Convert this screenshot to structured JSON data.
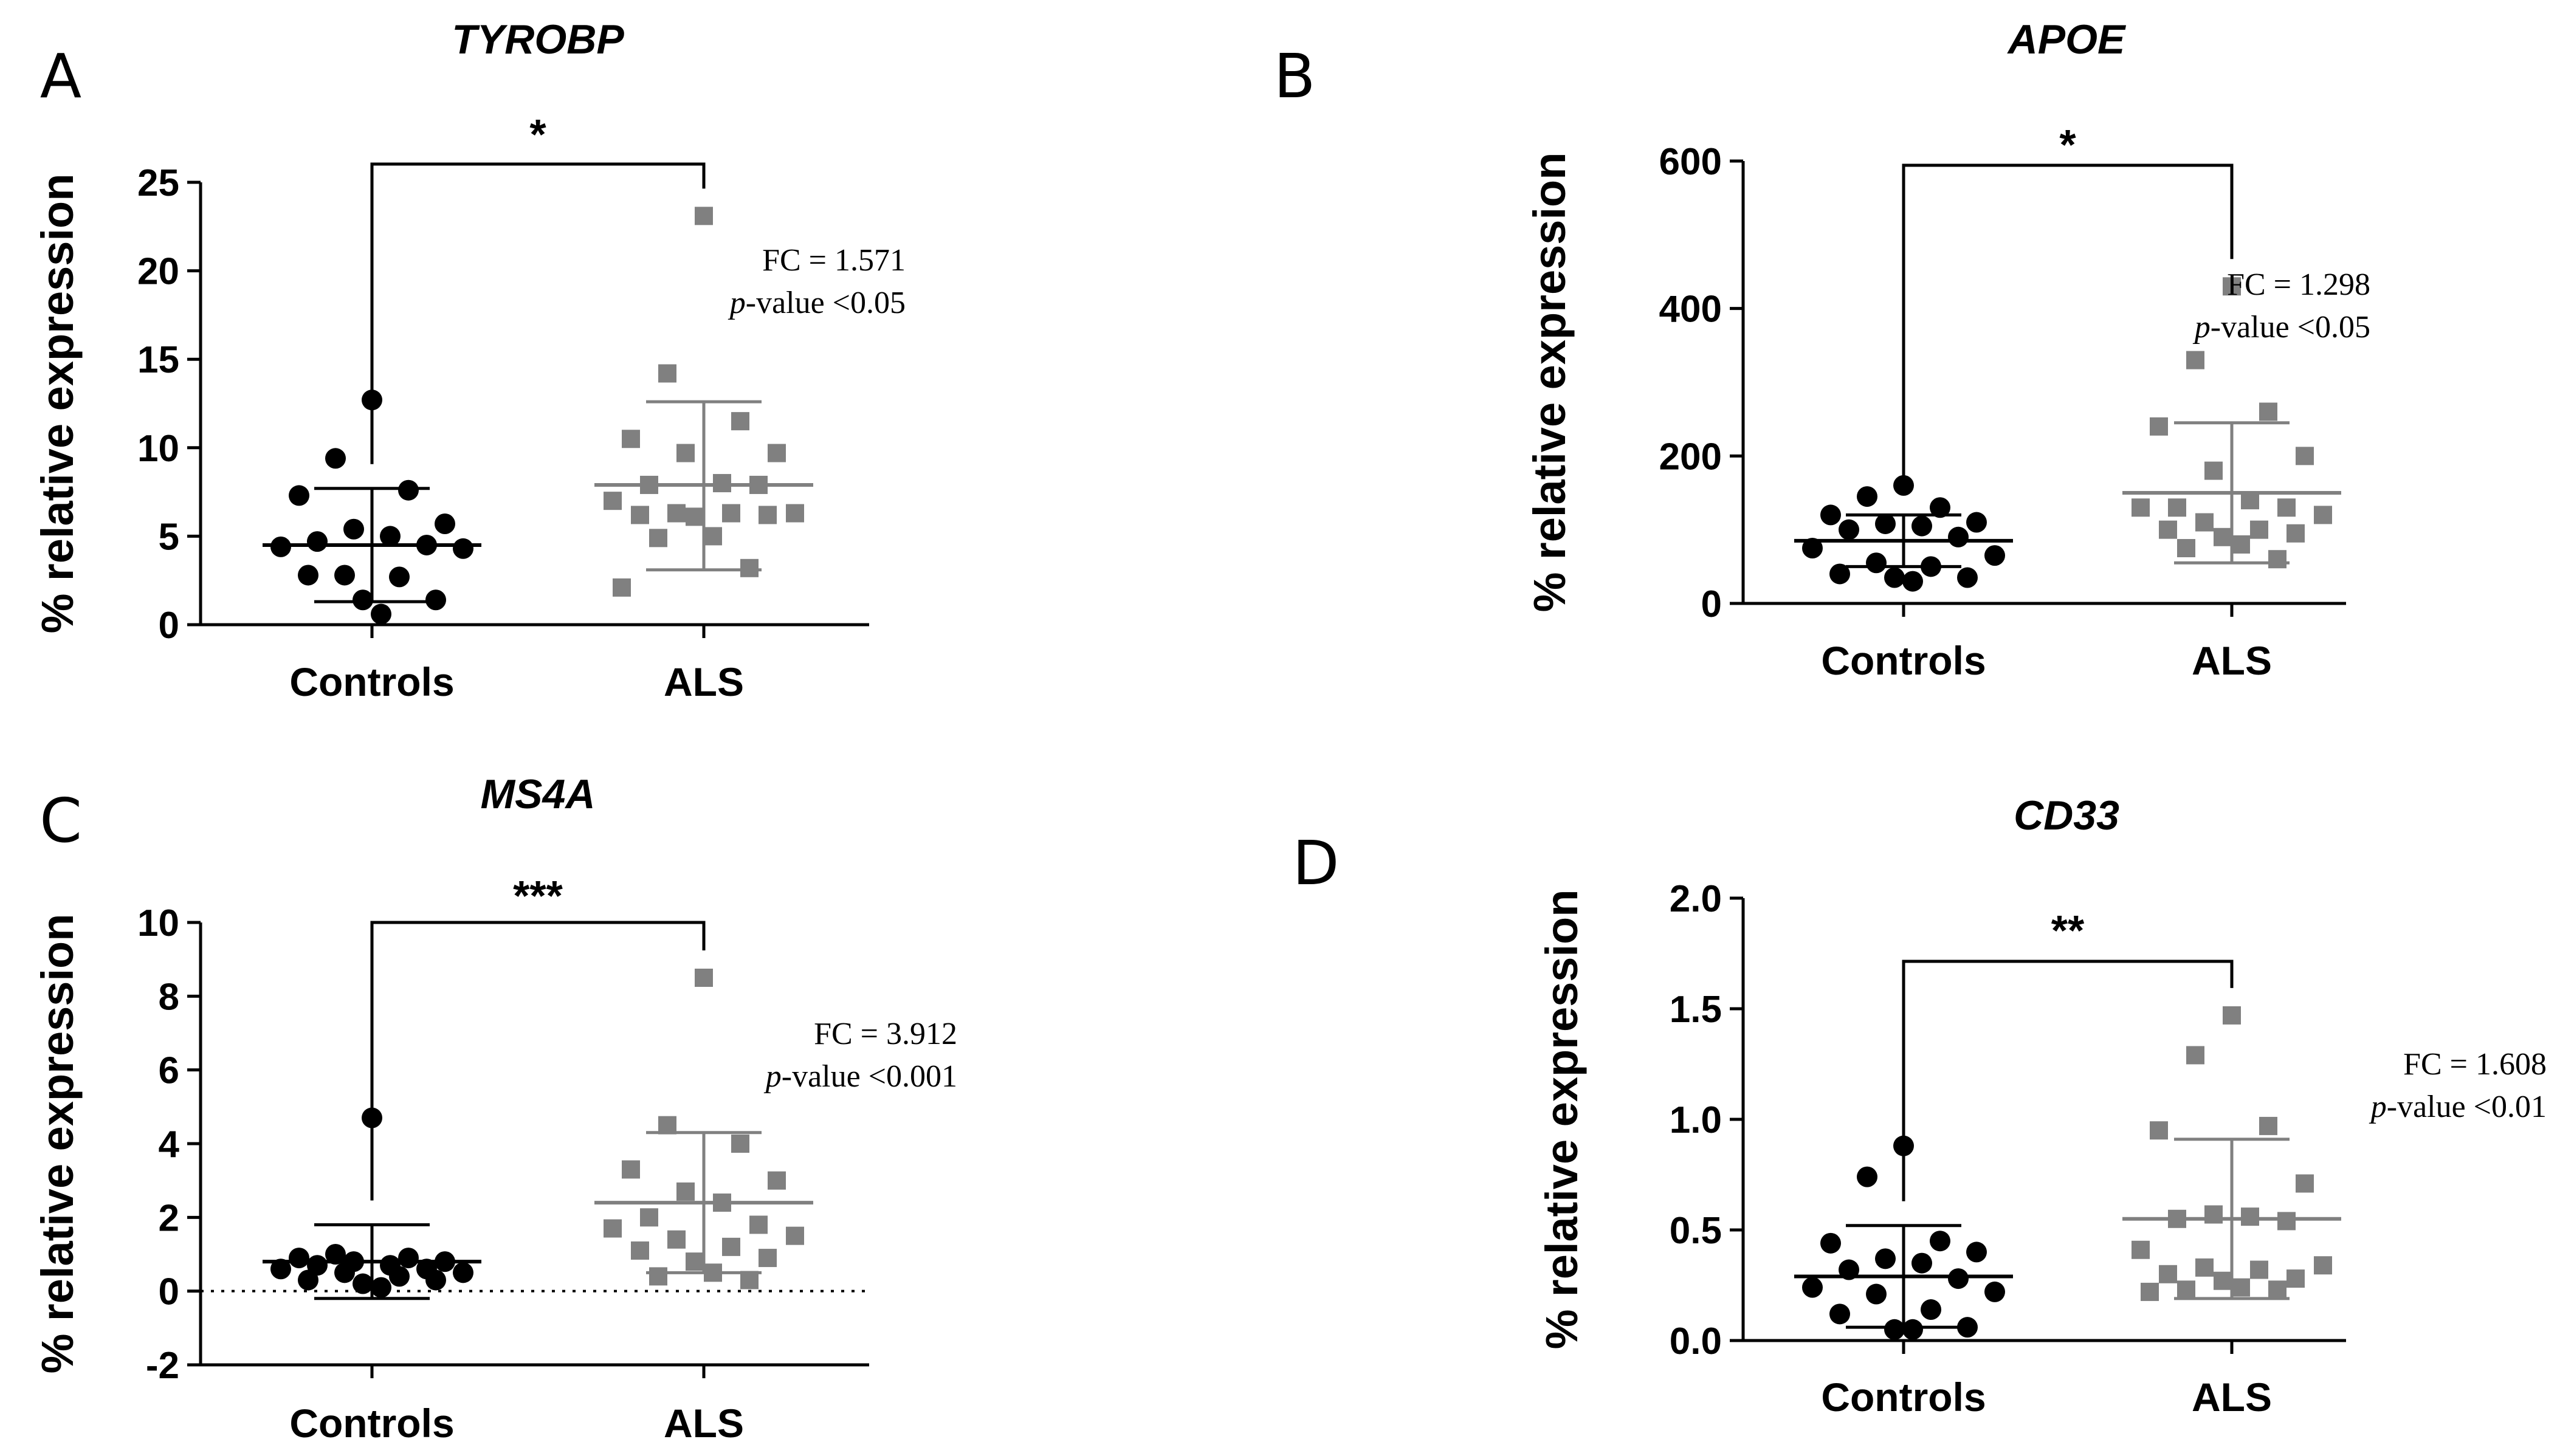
{
  "chart_data": [
    {
      "type": "scatter",
      "panel": "A",
      "title": "TYROBP",
      "ylabel": "% relative expression",
      "ylim": [
        0,
        25
      ],
      "yticks": [
        "0",
        "5",
        "10",
        "15",
        "20",
        "25"
      ],
      "categories": [
        "Controls",
        "ALS"
      ],
      "significance": "*",
      "annotation": {
        "fc": "FC = 1.571",
        "p_italic": "p",
        "p_text": "-value <0.05"
      },
      "reference_line": null,
      "groups": [
        {
          "name": "Controls",
          "marker": "circle",
          "color": "#000000",
          "mean": 4.5,
          "sd_low": 1.3,
          "sd_high": 7.7,
          "values": [
            12.7,
            9.4,
            7.6,
            7.3,
            5.7,
            5.4,
            5.0,
            4.7,
            4.5,
            4.4,
            4.3,
            2.8,
            2.7,
            2.8,
            1.4,
            1.4,
            0.6
          ]
        },
        {
          "name": "ALS",
          "marker": "square",
          "color": "#808080",
          "mean": 7.9,
          "sd_low": 3.1,
          "sd_high": 12.6,
          "values": [
            23.1,
            14.2,
            11.5,
            10.5,
            9.7,
            9.7,
            8.0,
            7.9,
            7.9,
            7.0,
            6.3,
            6.3,
            6.3,
            6.2,
            6.2,
            6.1,
            5.0,
            4.9,
            3.2,
            2.1
          ]
        }
      ]
    },
    {
      "type": "scatter",
      "panel": "B",
      "title": "APOE",
      "ylabel": "% relative expression",
      "ylim": [
        0,
        600
      ],
      "yticks": [
        "0",
        "200",
        "400",
        "600"
      ],
      "categories": [
        "Controls",
        "ALS"
      ],
      "significance": "*",
      "annotation": {
        "fc": "FC = 1.298",
        "p_italic": "p",
        "p_text": "-value <0.05"
      },
      "reference_line": null,
      "groups": [
        {
          "name": "Controls",
          "marker": "circle",
          "color": "#000000",
          "mean": 85,
          "sd_low": 50,
          "sd_high": 120,
          "values": [
            160,
            145,
            130,
            120,
            110,
            108,
            105,
            100,
            90,
            75,
            65,
            55,
            50,
            40,
            35,
            35,
            30
          ]
        },
        {
          "name": "ALS",
          "marker": "square",
          "color": "#808080",
          "mean": 150,
          "sd_low": 55,
          "sd_high": 245,
          "values": [
            430,
            330,
            260,
            240,
            200,
            180,
            140,
            130,
            130,
            130,
            120,
            110,
            100,
            100,
            95,
            90,
            80,
            75,
            60
          ]
        }
      ]
    },
    {
      "type": "scatter",
      "panel": "C",
      "title": "MS4A",
      "ylabel": "% relative expression",
      "ylim": [
        -2,
        10
      ],
      "yticks": [
        "-2",
        "0",
        "2",
        "4",
        "6",
        "8",
        "10"
      ],
      "categories": [
        "Controls",
        "ALS"
      ],
      "significance": "***",
      "annotation": {
        "fc": "FC = 3.912",
        "p_italic": "p",
        "p_text": "-value <0.001"
      },
      "reference_line": 0,
      "groups": [
        {
          "name": "Controls",
          "marker": "circle",
          "color": "#000000",
          "mean": 0.8,
          "sd_low": -0.2,
          "sd_high": 1.8,
          "values": [
            4.7,
            1.0,
            0.9,
            0.9,
            0.8,
            0.8,
            0.7,
            0.7,
            0.6,
            0.6,
            0.5,
            0.5,
            0.4,
            0.3,
            0.3,
            0.2,
            0.1
          ]
        },
        {
          "name": "ALS",
          "marker": "square",
          "color": "#808080",
          "mean": 2.4,
          "sd_low": 0.5,
          "sd_high": 4.3,
          "values": [
            8.5,
            4.5,
            4.0,
            3.3,
            3.0,
            2.7,
            2.4,
            2.0,
            1.8,
            1.7,
            1.5,
            1.4,
            1.2,
            1.1,
            0.9,
            0.8,
            0.5,
            0.4,
            0.3
          ]
        }
      ]
    },
    {
      "type": "scatter",
      "panel": "D",
      "title": "CD33",
      "ylabel": "% relative expression",
      "ylim": [
        0,
        2.0
      ],
      "yticks": [
        "0.0",
        "0.5",
        "1.0",
        "1.5",
        "2.0"
      ],
      "categories": [
        "Controls",
        "ALS"
      ],
      "significance": "**",
      "annotation": {
        "fc": "FC = 1.608",
        "p_italic": "p",
        "p_text": "-value <0.01"
      },
      "reference_line": null,
      "groups": [
        {
          "name": "Controls",
          "marker": "circle",
          "color": "#000000",
          "mean": 0.29,
          "sd_low": 0.06,
          "sd_high": 0.52,
          "values": [
            0.88,
            0.74,
            0.45,
            0.44,
            0.4,
            0.37,
            0.35,
            0.32,
            0.28,
            0.24,
            0.22,
            0.21,
            0.14,
            0.12,
            0.06,
            0.05,
            0.05
          ]
        },
        {
          "name": "ALS",
          "marker": "square",
          "color": "#808080",
          "mean": 0.55,
          "sd_low": 0.19,
          "sd_high": 0.91,
          "values": [
            1.47,
            1.29,
            0.97,
            0.95,
            0.71,
            0.57,
            0.56,
            0.55,
            0.54,
            0.41,
            0.34,
            0.33,
            0.32,
            0.3,
            0.28,
            0.27,
            0.24,
            0.23,
            0.23,
            0.22
          ]
        }
      ]
    }
  ]
}
